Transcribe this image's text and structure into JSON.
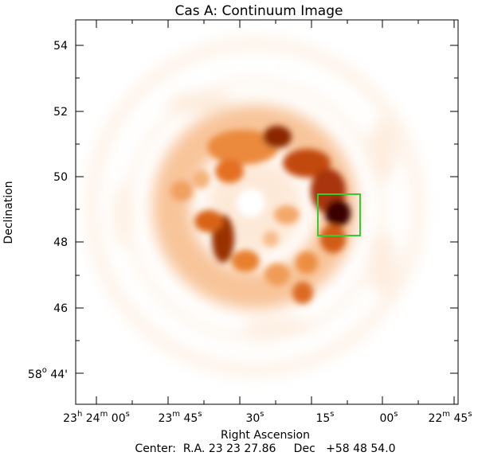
{
  "title": "Cas A: Continuum Image",
  "axes": {
    "xlabel": "Right Ascension",
    "ylabel": "Declination",
    "dec_ticks": [
      {
        "value": 54,
        "label": "54"
      },
      {
        "value": 52,
        "label": "52"
      },
      {
        "value": 50,
        "label": "50"
      },
      {
        "value": 48,
        "label": "48"
      },
      {
        "value": 46,
        "label": "46"
      }
    ],
    "dec_origin_label": {
      "deg": "58",
      "deg_sup": "o",
      "min": "44'"
    },
    "ra_ticks": [
      {
        "h": "23",
        "hs": "h",
        "m": "24",
        "ms": "m",
        "s": "00",
        "ss": "s"
      },
      {
        "h": "",
        "hs": "",
        "m": "23",
        "ms": "m",
        "s": "45",
        "ss": "s"
      },
      {
        "h": "",
        "hs": "",
        "m": "",
        "ms": "",
        "s": "30",
        "ss": "s"
      },
      {
        "h": "",
        "hs": "",
        "m": "",
        "ms": "",
        "s": "15",
        "ss": "s"
      },
      {
        "h": "",
        "hs": "",
        "m": "",
        "ms": "",
        "s": "00",
        "ss": "s"
      },
      {
        "h": "",
        "hs": "",
        "m": "22",
        "ms": "m",
        "s": "45",
        "ss": "s"
      }
    ]
  },
  "center_label": "Center:  R.A. 23 23 27.86     Dec   +58 48 54.0",
  "image": {
    "colormap": [
      "#ffffff",
      "#fbd7b4",
      "#e87d2a",
      "#b33a08",
      "#5a0b00"
    ],
    "box_color": "#33cc33"
  }
}
